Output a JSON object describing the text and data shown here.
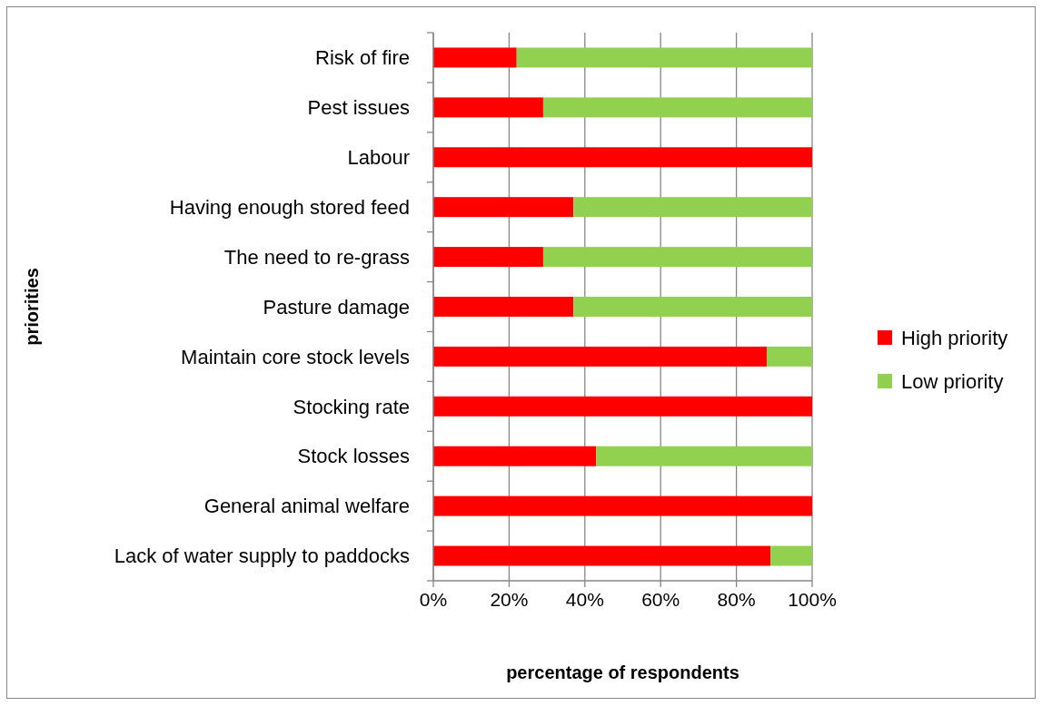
{
  "chart_data": {
    "type": "bar",
    "orientation": "horizontal",
    "stacked": true,
    "xlabel": "percentage of respondents",
    "ylabel": "priorities",
    "categories": [
      "Risk of fire",
      "Pest issues",
      "Labour",
      "Having enough stored feed",
      "The need to re-grass",
      "Pasture damage",
      "Maintain core stock levels",
      "Stocking rate",
      "Stock losses",
      "General animal welfare",
      "Lack of water supply to paddocks"
    ],
    "series": [
      {
        "name": "High priority",
        "color": "#ff0000",
        "values": [
          22,
          29,
          100,
          37,
          29,
          37,
          88,
          100,
          43,
          100,
          89
        ]
      },
      {
        "name": "Low priority",
        "color": "#92d050",
        "values": [
          78,
          71,
          0,
          63,
          71,
          63,
          12,
          0,
          57,
          0,
          11
        ]
      }
    ],
    "xlim": [
      0,
      100
    ],
    "xticks": [
      {
        "value": 0,
        "label": "0%"
      },
      {
        "value": 20,
        "label": "20%"
      },
      {
        "value": 40,
        "label": "40%"
      },
      {
        "value": 60,
        "label": "60%"
      },
      {
        "value": 80,
        "label": "80%"
      },
      {
        "value": 100,
        "label": "100%"
      }
    ],
    "grid": "x",
    "legend": "right"
  }
}
